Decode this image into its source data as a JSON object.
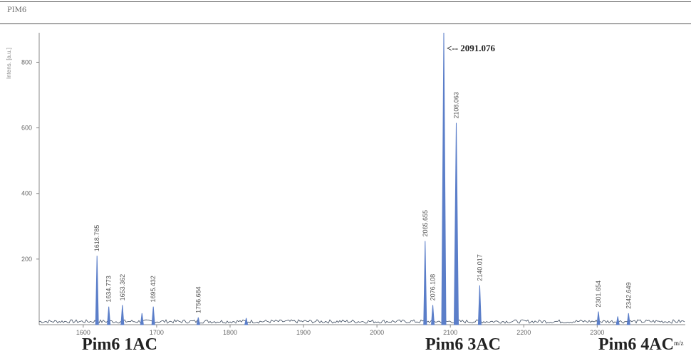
{
  "header": {
    "title": "PIM6"
  },
  "chart_data": {
    "type": "line",
    "ylabel": "Intens. [a.u.]",
    "xlabel": "m/z",
    "xlim": [
      1540,
      2420
    ],
    "ylim": [
      0,
      890
    ],
    "x_ticks": [
      1600,
      1700,
      1800,
      1900,
      2000,
      2100,
      2200,
      2300
    ],
    "y_ticks": [
      200,
      400,
      600,
      800
    ],
    "line_color": "#5b7ec9",
    "peaks": [
      {
        "x": 1618.785,
        "y": 210,
        "label": "1618.785"
      },
      {
        "x": 1634.773,
        "y": 55,
        "label": "1634.773"
      },
      {
        "x": 1653.362,
        "y": 60,
        "label": "1653.362"
      },
      {
        "x": 1680.0,
        "y": 35,
        "label": ""
      },
      {
        "x": 1695.432,
        "y": 55,
        "label": "1695.432"
      },
      {
        "x": 1756.684,
        "y": 22,
        "label": "1756.684"
      },
      {
        "x": 1822.0,
        "y": 20,
        "label": ""
      },
      {
        "x": 2065.655,
        "y": 255,
        "label": "2065.655"
      },
      {
        "x": 2076.108,
        "y": 60,
        "label": "2076.108"
      },
      {
        "x": 2091.076,
        "y": 890,
        "label": "<-- 2091.076"
      },
      {
        "x": 2108.063,
        "y": 615,
        "label": "2108.063"
      },
      {
        "x": 2140.017,
        "y": 120,
        "label": "2140.017"
      },
      {
        "x": 2301.654,
        "y": 40,
        "label": "2301.654"
      },
      {
        "x": 2328.0,
        "y": 25,
        "label": ""
      },
      {
        "x": 2342.649,
        "y": 35,
        "label": "2342.649"
      }
    ],
    "annotations": [
      "Pim6 1AC",
      "Pim6 3AC",
      "Pim6 4AC"
    ]
  }
}
